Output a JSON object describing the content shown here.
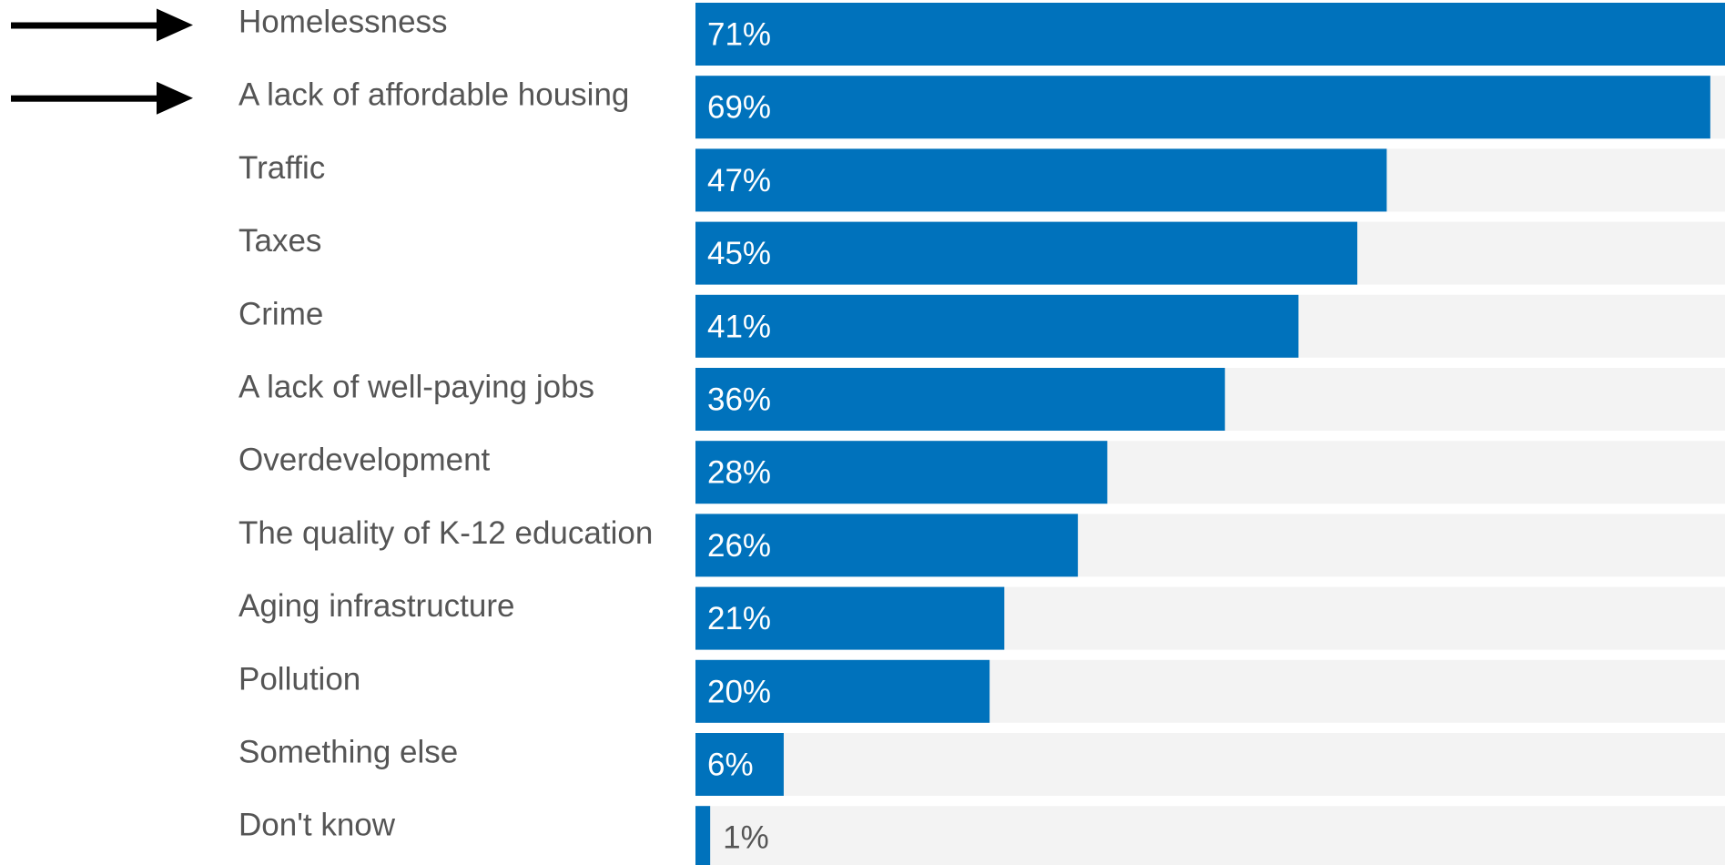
{
  "chart_data": {
    "type": "bar",
    "orientation": "horizontal",
    "categories": [
      "Homelessness",
      "A lack of affordable housing",
      "Traffic",
      "Taxes",
      "Crime",
      "A lack of well-paying jobs",
      "Overdevelopment",
      "The quality of K-12 education",
      "Aging infrastructure",
      "Pollution",
      "Something else",
      "Don't know"
    ],
    "values": [
      71,
      69,
      47,
      45,
      41,
      36,
      28,
      26,
      21,
      20,
      6,
      1
    ],
    "value_labels": [
      "71%",
      "69%",
      "47%",
      "45%",
      "41%",
      "36%",
      "28%",
      "26%",
      "21%",
      "20%",
      "6%",
      "1%"
    ],
    "highlighted_categories": [
      "Homelessness",
      "A lack of affordable housing"
    ],
    "xlim": [
      0,
      70
    ],
    "grid": false,
    "colors": {
      "bar": "#0072bc",
      "track": "#f3f3f3",
      "category_text": "#555555",
      "value_text_inside": "#ffffff",
      "value_text_outside": "#555555",
      "arrow": "#000000"
    }
  },
  "annotations": {
    "arrow_icon": "right-arrow-icon"
  }
}
